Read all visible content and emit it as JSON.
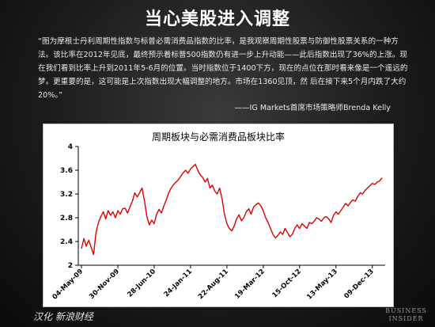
{
  "page": {
    "headline": "当心美股进入调整",
    "quote": "“图为摩根士丹利周期性指数与标普必需消费品指数的比率，是我观察周期性股票与防御性股票关系的一种方法。该比率在2012年见底，最终预示着标普500指数仍有进一步上升动能——此后指数出现了36%的上涨。现在我们看到比率上升到2011年5-6月的位置。当时指数位于1400下方，现在的点位在那时看来像是一个遥远的梦。更重要的是，这可能是上次指数出现大幅调整的地方。市场在1360见顶，然 后在接下来5个月内跌了大约20%。”",
    "attribution": "——IG Markets首席市场策略师Brenda Kelly",
    "footer_left": "汉化 新浪财经",
    "footer_right_line1": "BUSINESS",
    "footer_right_line2": "INSIDER"
  },
  "chart_data": {
    "type": "line",
    "title": "周期板块与必需消费品板块比率",
    "xlabel": "",
    "ylabel": "",
    "ylim": [
      2,
      4
    ],
    "y_ticks": [
      "2",
      "2.4",
      "2.8",
      "3.2",
      "3.6",
      "4"
    ],
    "x_ticks": [
      "04-May-09",
      "30-Nov-09",
      "28-Jun-10",
      "24-Jan-11",
      "22-Aug-11",
      "19-Mar-12",
      "15-Oct-12",
      "13-May-13",
      "09-Dec-13"
    ],
    "line_color": "#e00000",
    "grid": false,
    "series": [
      {
        "name": "",
        "x": [
          "04-May-09",
          "18-May-09",
          "01-Jun-09",
          "15-Jun-09",
          "29-Jun-09",
          "13-Jul-09",
          "27-Jul-09",
          "10-Aug-09",
          "24-Aug-09",
          "07-Sep-09",
          "21-Sep-09",
          "05-Oct-09",
          "19-Oct-09",
          "02-Nov-09",
          "16-Nov-09",
          "30-Nov-09",
          "14-Dec-09",
          "28-Dec-09",
          "11-Jan-10",
          "25-Jan-10",
          "08-Feb-10",
          "22-Feb-10",
          "08-Mar-10",
          "22-Mar-10",
          "05-Apr-10",
          "19-Apr-10",
          "03-May-10",
          "17-May-10",
          "31-May-10",
          "14-Jun-10",
          "28-Jun-10",
          "12-Jul-10",
          "26-Jul-10",
          "09-Aug-10",
          "23-Aug-10",
          "06-Sep-10",
          "20-Sep-10",
          "04-Oct-10",
          "18-Oct-10",
          "01-Nov-10",
          "15-Nov-10",
          "29-Nov-10",
          "13-Dec-10",
          "27-Dec-10",
          "10-Jan-11",
          "24-Jan-11",
          "07-Feb-11",
          "21-Feb-11",
          "07-Mar-11",
          "21-Mar-11",
          "04-Apr-11",
          "18-Apr-11",
          "02-May-11",
          "16-May-11",
          "30-May-11",
          "13-Jun-11",
          "27-Jun-11",
          "11-Jul-11",
          "25-Jul-11",
          "08-Aug-11",
          "22-Aug-11",
          "05-Sep-11",
          "19-Sep-11",
          "03-Oct-11",
          "17-Oct-11",
          "31-Oct-11",
          "14-Nov-11",
          "28-Nov-11",
          "12-Dec-11",
          "26-Dec-11",
          "09-Jan-12",
          "23-Jan-12",
          "06-Feb-12",
          "20-Feb-12",
          "05-Mar-12",
          "19-Mar-12",
          "02-Apr-12",
          "16-Apr-12",
          "30-Apr-12",
          "14-May-12",
          "28-May-12",
          "11-Jun-12",
          "25-Jun-12",
          "09-Jul-12",
          "23-Jul-12",
          "06-Aug-12",
          "20-Aug-12",
          "03-Sep-12",
          "17-Sep-12",
          "01-Oct-12",
          "15-Oct-12",
          "29-Oct-12",
          "12-Nov-12",
          "26-Nov-12",
          "10-Dec-12",
          "24-Dec-12",
          "07-Jan-13",
          "21-Jan-13",
          "04-Feb-13",
          "18-Feb-13",
          "04-Mar-13",
          "18-Mar-13",
          "01-Apr-13",
          "15-Apr-13",
          "29-Apr-13",
          "13-May-13",
          "27-May-13",
          "10-Jun-13",
          "24-Jun-13",
          "08-Jul-13",
          "22-Jul-13",
          "05-Aug-13",
          "19-Aug-13",
          "02-Sep-13",
          "16-Sep-13",
          "30-Sep-13",
          "14-Oct-13",
          "28-Oct-13",
          "11-Nov-13",
          "25-Nov-13",
          "09-Dec-13",
          "23-Dec-13",
          "06-Jan-14",
          "20-Jan-14",
          "03-Feb-14"
        ],
        "values": [
          2.28,
          2.45,
          2.32,
          2.42,
          2.3,
          2.18,
          2.55,
          2.72,
          2.82,
          2.9,
          2.78,
          2.92,
          2.84,
          2.9,
          2.8,
          2.92,
          2.86,
          2.95,
          2.96,
          2.88,
          2.98,
          3.08,
          3.22,
          3.15,
          3.22,
          3.3,
          3.08,
          2.82,
          2.68,
          2.76,
          2.7,
          2.86,
          2.94,
          2.88,
          3.0,
          3.1,
          3.22,
          3.3,
          3.36,
          3.4,
          3.44,
          3.5,
          3.56,
          3.6,
          3.55,
          3.62,
          3.66,
          3.7,
          3.6,
          3.52,
          3.48,
          3.4,
          3.46,
          3.3,
          3.35,
          3.25,
          3.2,
          3.3,
          3.12,
          2.86,
          2.7,
          2.62,
          2.58,
          2.66,
          2.78,
          2.85,
          2.75,
          2.8,
          2.9,
          2.95,
          2.86,
          2.98,
          3.02,
          3.05,
          3.0,
          2.92,
          2.8,
          2.72,
          2.62,
          2.52,
          2.46,
          2.5,
          2.56,
          2.52,
          2.62,
          2.55,
          2.48,
          2.52,
          2.62,
          2.68,
          2.62,
          2.7,
          2.66,
          2.62,
          2.72,
          2.7,
          2.74,
          2.8,
          2.78,
          2.74,
          2.8,
          2.82,
          2.78,
          2.72,
          2.84,
          2.9,
          2.86,
          2.92,
          2.98,
          3.04,
          3.0,
          3.06,
          3.1,
          3.08,
          3.16,
          3.22,
          3.2,
          3.26,
          3.3,
          3.34,
          3.38,
          3.36,
          3.4,
          3.42,
          3.47
        ]
      }
    ]
  }
}
